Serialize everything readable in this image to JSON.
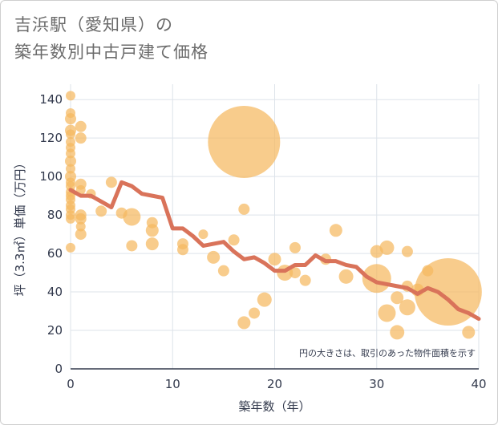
{
  "title_line1": "吉浜駅（愛知県）の",
  "title_line2": "築年数別中古戸建て価格",
  "note": "円の大きさは、取引のあった物件面積を示す",
  "colors": {
    "bubble": "#f5b95f",
    "line": "#d9735a",
    "grid": "#dde3ea",
    "plot_bg": "#ffffff"
  },
  "chart_data": {
    "type": "scatter",
    "xlabel": "築年数（年）",
    "ylabel": "坪（3.3㎡）単価（万円）",
    "xlim": [
      0,
      40
    ],
    "ylim": [
      0,
      148
    ],
    "xticks": [
      0,
      10,
      20,
      30,
      40
    ],
    "yticks": [
      0,
      20,
      40,
      60,
      80,
      100,
      120,
      140
    ],
    "bubbles": [
      {
        "x": 0,
        "y": 142,
        "r": 6
      },
      {
        "x": 0,
        "y": 133,
        "r": 6
      },
      {
        "x": 0,
        "y": 130,
        "r": 7
      },
      {
        "x": 0,
        "y": 124,
        "r": 7
      },
      {
        "x": 0,
        "y": 122,
        "r": 6
      },
      {
        "x": 0,
        "y": 118,
        "r": 6
      },
      {
        "x": 0,
        "y": 115,
        "r": 6
      },
      {
        "x": 0,
        "y": 112,
        "r": 6
      },
      {
        "x": 0,
        "y": 108,
        "r": 7
      },
      {
        "x": 0,
        "y": 104,
        "r": 6
      },
      {
        "x": 0,
        "y": 100,
        "r": 7
      },
      {
        "x": 0,
        "y": 97,
        "r": 6
      },
      {
        "x": 0,
        "y": 95,
        "r": 6
      },
      {
        "x": 0,
        "y": 92,
        "r": 6
      },
      {
        "x": 0,
        "y": 90,
        "r": 6
      },
      {
        "x": 0,
        "y": 88,
        "r": 6
      },
      {
        "x": 0,
        "y": 85,
        "r": 6
      },
      {
        "x": 0,
        "y": 83,
        "r": 6
      },
      {
        "x": 0,
        "y": 80,
        "r": 6
      },
      {
        "x": 0,
        "y": 78,
        "r": 6
      },
      {
        "x": 0,
        "y": 63,
        "r": 6
      },
      {
        "x": 1,
        "y": 126,
        "r": 7
      },
      {
        "x": 1,
        "y": 120,
        "r": 7
      },
      {
        "x": 1,
        "y": 96,
        "r": 7
      },
      {
        "x": 1,
        "y": 93,
        "r": 6
      },
      {
        "x": 1,
        "y": 80,
        "r": 7
      },
      {
        "x": 1,
        "y": 78,
        "r": 7
      },
      {
        "x": 1,
        "y": 74,
        "r": 6
      },
      {
        "x": 1,
        "y": 70,
        "r": 7
      },
      {
        "x": 2,
        "y": 91,
        "r": 6
      },
      {
        "x": 3,
        "y": 82,
        "r": 7
      },
      {
        "x": 4,
        "y": 97,
        "r": 7
      },
      {
        "x": 5,
        "y": 81,
        "r": 7
      },
      {
        "x": 6,
        "y": 79,
        "r": 11
      },
      {
        "x": 6,
        "y": 64,
        "r": 7
      },
      {
        "x": 8,
        "y": 76,
        "r": 7
      },
      {
        "x": 8,
        "y": 72,
        "r": 8
      },
      {
        "x": 8,
        "y": 65,
        "r": 8
      },
      {
        "x": 11,
        "y": 65,
        "r": 7
      },
      {
        "x": 11,
        "y": 62,
        "r": 7
      },
      {
        "x": 13,
        "y": 70,
        "r": 6
      },
      {
        "x": 14,
        "y": 58,
        "r": 8
      },
      {
        "x": 15,
        "y": 51,
        "r": 7
      },
      {
        "x": 16,
        "y": 67,
        "r": 7
      },
      {
        "x": 17,
        "y": 118,
        "r": 45
      },
      {
        "x": 17,
        "y": 83,
        "r": 7
      },
      {
        "x": 17,
        "y": 24,
        "r": 8
      },
      {
        "x": 18,
        "y": 29,
        "r": 7
      },
      {
        "x": 19,
        "y": 36,
        "r": 9
      },
      {
        "x": 20,
        "y": 57,
        "r": 8
      },
      {
        "x": 21,
        "y": 50,
        "r": 10
      },
      {
        "x": 22,
        "y": 63,
        "r": 7
      },
      {
        "x": 22,
        "y": 50,
        "r": 7
      },
      {
        "x": 23,
        "y": 46,
        "r": 7
      },
      {
        "x": 25,
        "y": 57,
        "r": 7
      },
      {
        "x": 26,
        "y": 72,
        "r": 8
      },
      {
        "x": 27,
        "y": 48,
        "r": 9
      },
      {
        "x": 30,
        "y": 61,
        "r": 8
      },
      {
        "x": 30,
        "y": 47,
        "r": 18
      },
      {
        "x": 31,
        "y": 63,
        "r": 9
      },
      {
        "x": 31,
        "y": 29,
        "r": 11
      },
      {
        "x": 32,
        "y": 37,
        "r": 8
      },
      {
        "x": 32,
        "y": 19,
        "r": 9
      },
      {
        "x": 33,
        "y": 61,
        "r": 7
      },
      {
        "x": 33,
        "y": 43,
        "r": 7
      },
      {
        "x": 33,
        "y": 32,
        "r": 10
      },
      {
        "x": 34,
        "y": 41,
        "r": 8
      },
      {
        "x": 35,
        "y": 51,
        "r": 7
      },
      {
        "x": 37,
        "y": 40,
        "r": 42
      },
      {
        "x": 39,
        "y": 19,
        "r": 8
      }
    ],
    "trend": {
      "x": [
        0,
        1,
        2,
        3,
        4,
        5,
        6,
        7,
        8,
        9,
        10,
        11,
        12,
        13,
        14,
        15,
        16,
        17,
        18,
        19,
        20,
        21,
        22,
        23,
        24,
        25,
        26,
        27,
        28,
        29,
        30,
        31,
        32,
        33,
        34,
        35,
        36,
        37,
        38,
        39,
        40
      ],
      "y": [
        93,
        90,
        90,
        87,
        84,
        97,
        95,
        91,
        90,
        89,
        73,
        73,
        69,
        64,
        65,
        66,
        61,
        57,
        58,
        55,
        51,
        51,
        54,
        54,
        59,
        56,
        56,
        54,
        53,
        48,
        45,
        44,
        43,
        42,
        39,
        42,
        40,
        36,
        31,
        29,
        26
      ]
    }
  }
}
